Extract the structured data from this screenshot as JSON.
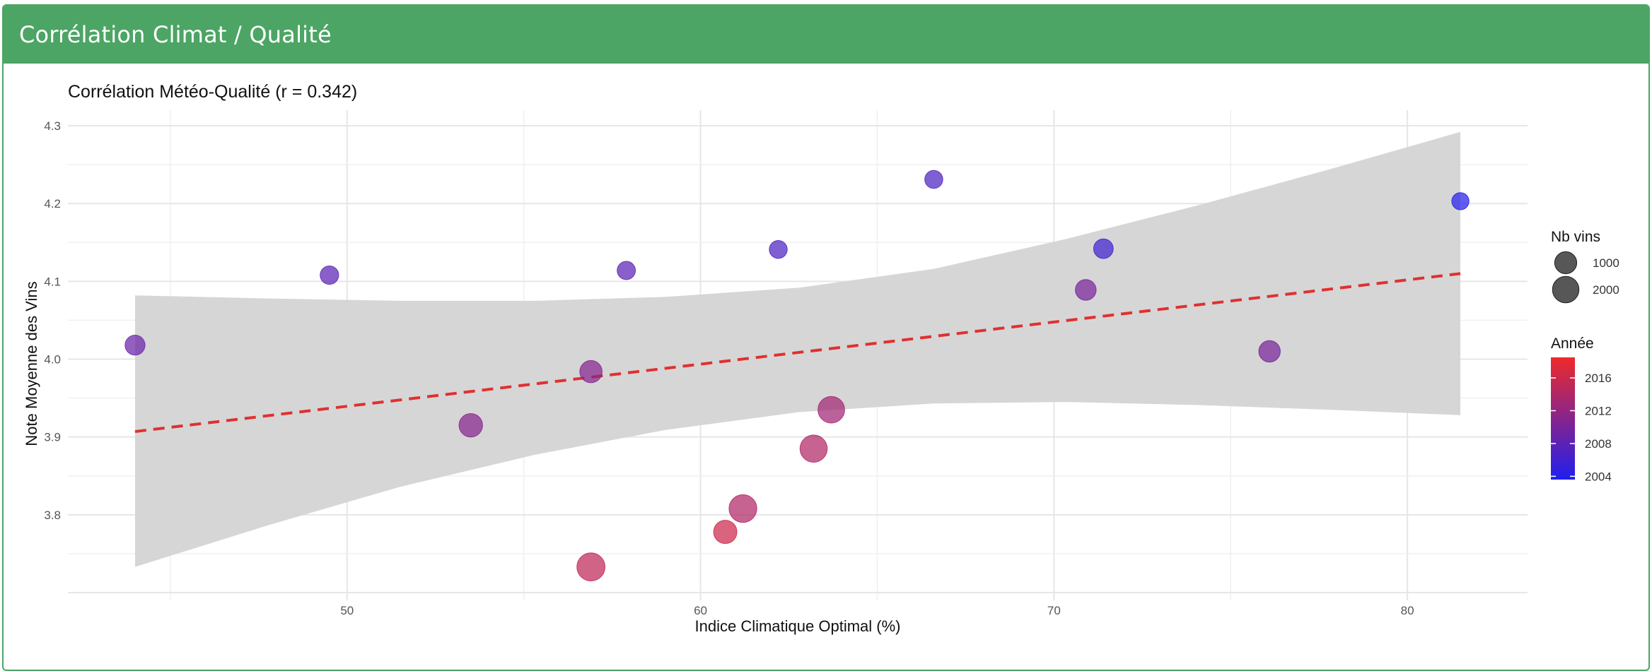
{
  "panel": {
    "title": "Corrélation Climat / Qualité"
  },
  "colors": {
    "header": "#4ca564",
    "trend": "#e03030",
    "band": "#d4d4d4",
    "low": "#1f1fef",
    "high": "#ef2a2a"
  },
  "chart_data": {
    "type": "scatter",
    "title": "Corrélation Météo-Qualité (r = 0.342)",
    "xlabel": "Indice Climatique Optimal (%)",
    "ylabel": "Note Moyenne des Vins",
    "xlim": [
      42.1,
      83.4
    ],
    "ylim": [
      3.69,
      4.32
    ],
    "x_ticks": [
      50,
      60,
      70,
      80
    ],
    "y_ticks": [
      3.8,
      3.9,
      4.0,
      4.1,
      4.2,
      4.3
    ],
    "grid": true,
    "points": [
      {
        "x": 44.0,
        "y": 4.018,
        "n": 650,
        "year": 2009
      },
      {
        "x": 49.5,
        "y": 4.108,
        "n": 450,
        "year": 2008
      },
      {
        "x": 53.5,
        "y": 3.915,
        "n": 1300,
        "year": 2011
      },
      {
        "x": 56.9,
        "y": 3.984,
        "n": 1050,
        "year": 2011
      },
      {
        "x": 56.9,
        "y": 3.733,
        "n": 2450,
        "year": 2015
      },
      {
        "x": 57.9,
        "y": 4.114,
        "n": 420,
        "year": 2008
      },
      {
        "x": 60.7,
        "y": 3.778,
        "n": 1250,
        "year": 2016
      },
      {
        "x": 61.2,
        "y": 3.808,
        "n": 2350,
        "year": 2014
      },
      {
        "x": 62.2,
        "y": 4.141,
        "n": 380,
        "year": 2007
      },
      {
        "x": 63.2,
        "y": 3.885,
        "n": 2200,
        "year": 2014
      },
      {
        "x": 63.7,
        "y": 3.935,
        "n": 2050,
        "year": 2013
      },
      {
        "x": 66.6,
        "y": 4.231,
        "n": 390,
        "year": 2007
      },
      {
        "x": 70.9,
        "y": 4.089,
        "n": 780,
        "year": 2010
      },
      {
        "x": 71.4,
        "y": 4.142,
        "n": 600,
        "year": 2006
      },
      {
        "x": 76.1,
        "y": 4.01,
        "n": 900,
        "year": 2010
      },
      {
        "x": 81.5,
        "y": 4.203,
        "n": 300,
        "year": 2004
      }
    ],
    "trend": {
      "x": [
        44.0,
        81.5
      ],
      "y": [
        3.907,
        4.11
      ],
      "style": "dashed"
    },
    "confidence_band": {
      "x": [
        44.0,
        47.8,
        51.5,
        55.3,
        59.0,
        62.8,
        66.6,
        70.3,
        74.1,
        77.8,
        81.5
      ],
      "lower": [
        3.733,
        3.787,
        3.836,
        3.877,
        3.909,
        3.932,
        3.943,
        3.945,
        3.941,
        3.935,
        3.928
      ],
      "upper": [
        4.082,
        4.078,
        4.075,
        4.075,
        4.08,
        4.092,
        4.116,
        4.154,
        4.198,
        4.244,
        4.292
      ]
    },
    "legend_size": {
      "title": "Nb vins",
      "values": [
        1000,
        2000
      ],
      "labels": [
        "1000",
        "2000"
      ]
    },
    "legend_color": {
      "title": "Année",
      "min": 2003.6,
      "max": 2018.5,
      "ticks": [
        2004,
        2008,
        2012,
        2016
      ],
      "labels": [
        "2004",
        "2008",
        "2012",
        "2016"
      ]
    },
    "legend_position": "right"
  }
}
